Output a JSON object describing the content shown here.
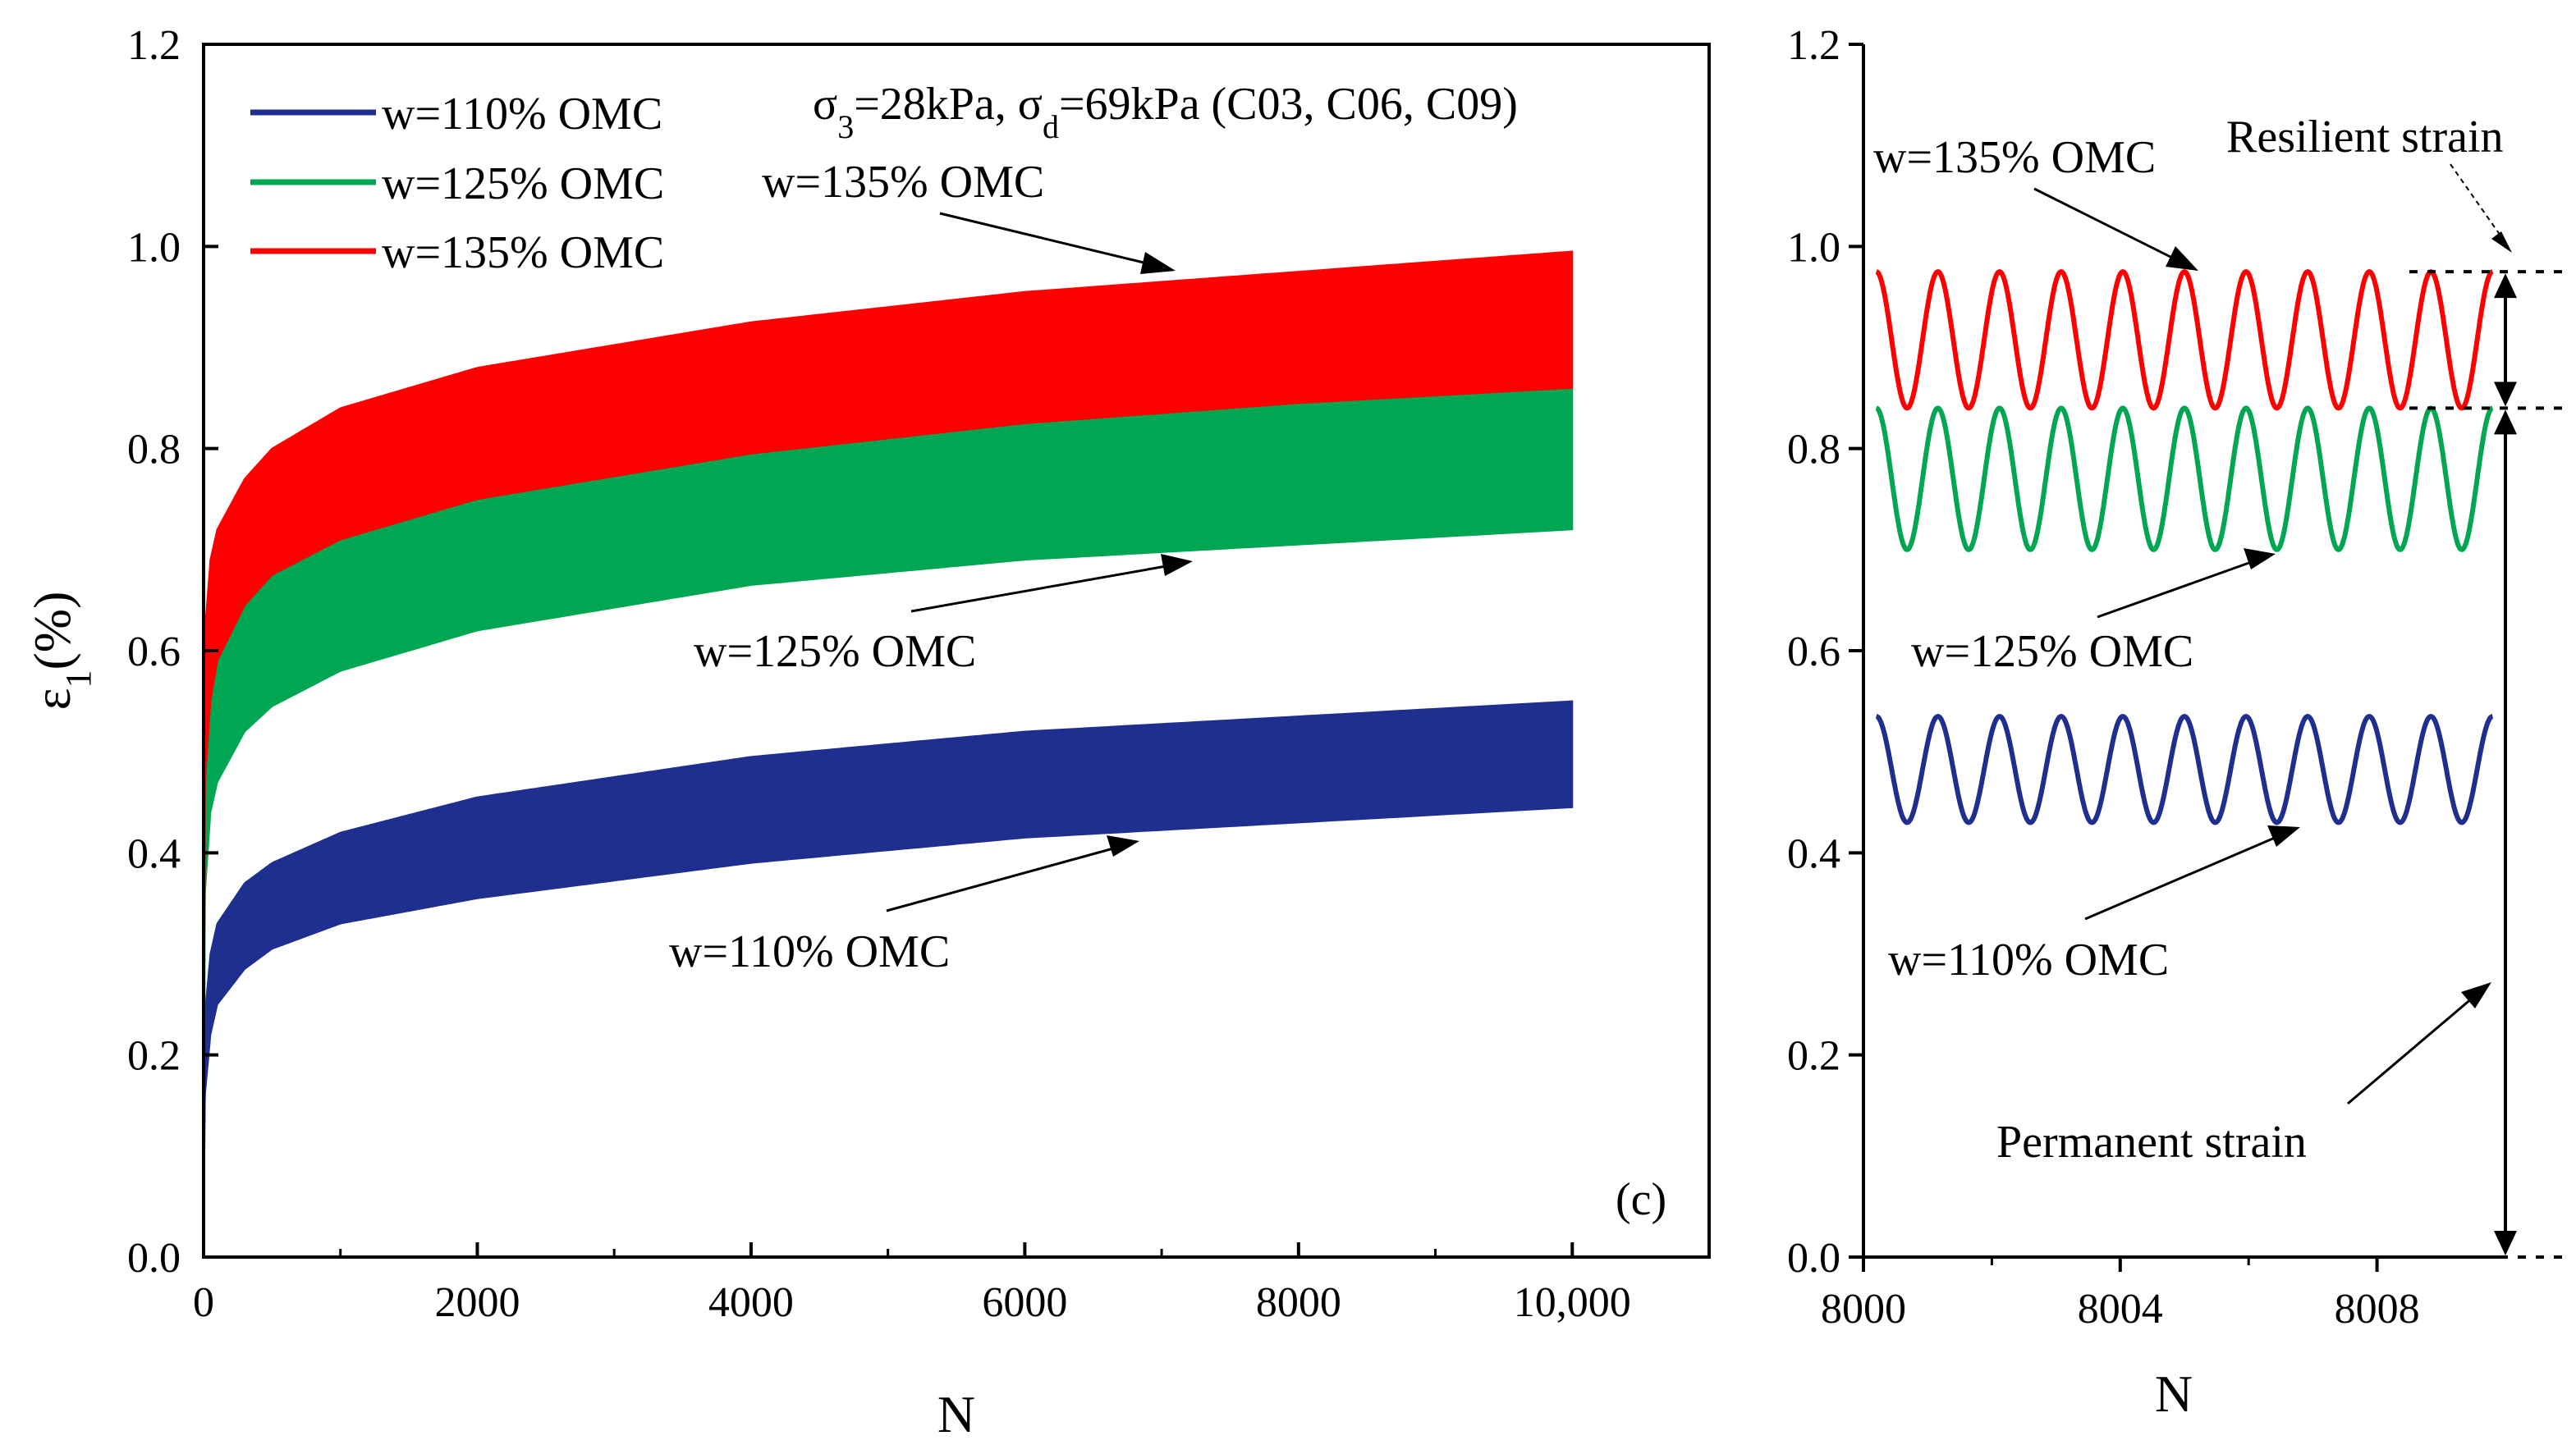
{
  "colors": {
    "w110": "#1f2f8f",
    "w125": "#00a651",
    "w135": "#ff0000",
    "axis": "#000000"
  },
  "chart_data": [
    {
      "type": "area",
      "panel_label": "(c)",
      "title": "σ3=28kPa, σd=69kPa (C03, C06, C09)",
      "title_parts": {
        "sigma3_symbol": "σ",
        "sigma3_sub": "3",
        "sigma3_value": "=28kPa, ",
        "sigmad_symbol": "σ",
        "sigmad_sub": "d",
        "sigmad_value": "=69kPa (C03, C06, C09)"
      },
      "xlabel": "N",
      "ylabel": {
        "symbol": "ε",
        "sub": "1",
        "rest": "(%)"
      },
      "xlim": [
        0,
        11000
      ],
      "ylim": [
        0,
        1.2
      ],
      "x_ticks": [
        0,
        2000,
        4000,
        6000,
        8000,
        10000
      ],
      "x_tick_labels": [
        "0",
        "2000",
        "4000",
        "6000",
        "8000",
        "10,000"
      ],
      "y_ticks": [
        0,
        0.2,
        0.4,
        0.6,
        0.8,
        1.0,
        1.2
      ],
      "y_tick_labels": [
        "0.0",
        "0.2",
        "0.4",
        "0.6",
        "0.8",
        "1.0",
        "1.2"
      ],
      "legend": [
        {
          "label": "w=110% OMC",
          "key": "w110"
        },
        {
          "label": "w=125% OMC",
          "key": "w125"
        },
        {
          "label": "w=135% OMC",
          "key": "w135"
        }
      ],
      "annotations": {
        "w135": "w=135% OMC",
        "w125": "w=125% OMC",
        "w110": "w=110% OMC"
      },
      "series": [
        {
          "name": "w=110% OMC",
          "key": "w110",
          "x": [
            0,
            10,
            50,
            100,
            300,
            500,
            1000,
            2000,
            4000,
            6000,
            8000,
            10000
          ],
          "lower": [
            0,
            0.16,
            0.22,
            0.25,
            0.285,
            0.305,
            0.33,
            0.355,
            0.39,
            0.415,
            0.43,
            0.445
          ],
          "upper": [
            0,
            0.24,
            0.3,
            0.33,
            0.37,
            0.39,
            0.42,
            0.455,
            0.495,
            0.52,
            0.535,
            0.55
          ]
        },
        {
          "name": "w=125% OMC",
          "key": "w125",
          "x": [
            0,
            10,
            50,
            100,
            300,
            500,
            1000,
            2000,
            4000,
            6000,
            8000,
            10000
          ],
          "lower": [
            0,
            0.36,
            0.44,
            0.47,
            0.52,
            0.545,
            0.58,
            0.62,
            0.665,
            0.69,
            0.705,
            0.72
          ],
          "upper": [
            0,
            0.47,
            0.55,
            0.59,
            0.645,
            0.675,
            0.71,
            0.75,
            0.795,
            0.825,
            0.845,
            0.86
          ]
        },
        {
          "name": "w=135% OMC",
          "key": "w135",
          "x": [
            0,
            10,
            50,
            100,
            300,
            500,
            1000,
            2000,
            4000,
            6000,
            8000,
            10000
          ],
          "lower": [
            0,
            0.47,
            0.55,
            0.59,
            0.645,
            0.675,
            0.71,
            0.75,
            0.795,
            0.825,
            0.845,
            0.86
          ],
          "upper": [
            0,
            0.62,
            0.69,
            0.72,
            0.77,
            0.8,
            0.84,
            0.88,
            0.925,
            0.955,
            0.975,
            0.995
          ]
        }
      ]
    },
    {
      "type": "line",
      "xlabel": "N",
      "xlim": [
        8000,
        8010
      ],
      "ylim": [
        0,
        1.2
      ],
      "x_ticks": [
        8000,
        8004,
        8008
      ],
      "x_tick_labels": [
        "8000",
        "8004",
        "8008"
      ],
      "y_ticks": [
        0,
        0.2,
        0.4,
        0.6,
        0.8,
        1.0,
        1.2
      ],
      "y_tick_labels": [
        "0.0",
        "0.2",
        "0.4",
        "0.6",
        "0.8",
        "1.0",
        "1.2"
      ],
      "cycles": 10,
      "cycle_start": 8000.2,
      "cycle_end": 8009.8,
      "series": [
        {
          "name": "w=135% OMC",
          "key": "w135",
          "min": 0.84,
          "max": 0.975
        },
        {
          "name": "w=125% OMC",
          "key": "w125",
          "min": 0.7,
          "max": 0.84
        },
        {
          "name": "w=110% OMC",
          "key": "w110",
          "min": 0.43,
          "max": 0.535
        }
      ],
      "annotations": {
        "w135": "w=135% OMC",
        "w125": "w=125% OMC",
        "w110": "w=110% OMC",
        "resilient": "Resilient strain",
        "permanent": "Permanent strain"
      },
      "reference_levels": {
        "peak": 0.975,
        "trough": 0.84,
        "zero": 0.0
      }
    }
  ]
}
